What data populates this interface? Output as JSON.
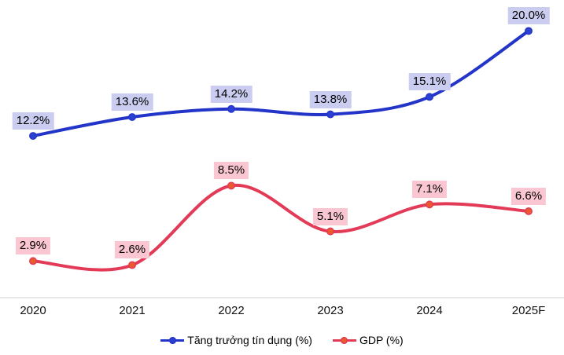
{
  "chart_data": {
    "type": "line",
    "categories": [
      "2020",
      "2021",
      "2022",
      "2023",
      "2024",
      "2025F"
    ],
    "series": [
      {
        "name": "Tăng trưởng tín dụng (%)",
        "values": [
          12.2,
          13.6,
          14.2,
          13.8,
          15.1,
          20.0
        ],
        "labels": [
          "12.2%",
          "13.6%",
          "14.2%",
          "13.8%",
          "15.1%",
          "20.0%"
        ],
        "color": "#2335c8",
        "marker_color": "#2b41d4",
        "label_bg": "#cacdf0"
      },
      {
        "name": "GDP (%)",
        "values": [
          2.9,
          2.6,
          8.5,
          5.1,
          7.1,
          6.6
        ],
        "labels": [
          "2.9%",
          "2.6%",
          "8.5%",
          "5.1%",
          "7.1%",
          "6.6%"
        ],
        "color": "#e23a57",
        "marker_color": "#ea5b2c",
        "label_bg": "#f9c6d1"
      }
    ],
    "title": "",
    "xlabel": "",
    "ylabel": "",
    "ylim": [
      0,
      22.3
    ],
    "grid": false,
    "smooth": true,
    "legend_position": "bottom",
    "axis_line_color": "#d9d9d9",
    "text_color": "#000000"
  }
}
